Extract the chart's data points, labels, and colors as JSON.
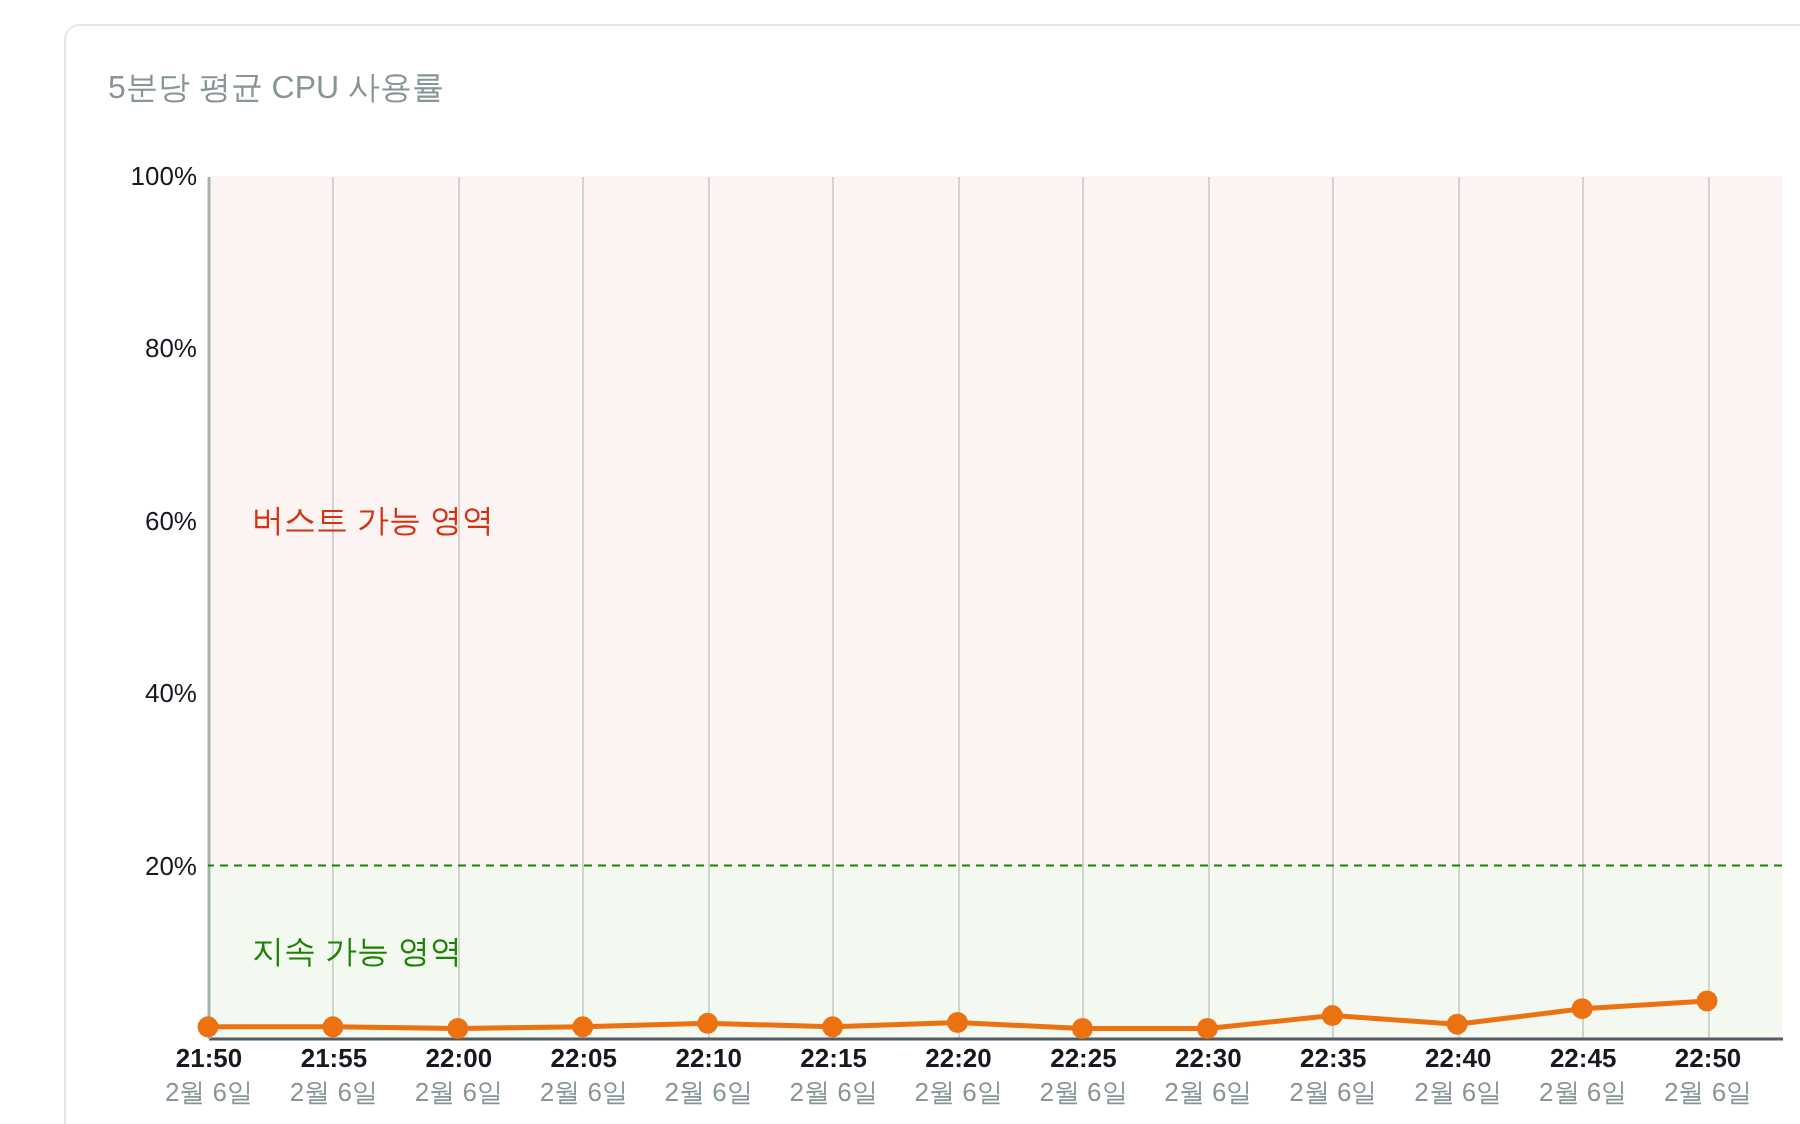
{
  "chart_data": {
    "type": "line",
    "title": "5분당 평균 CPU 사용률",
    "x": [
      "--02-06T21:50",
      "--02-06T21:55",
      "--02-06T22:00",
      "--02-06T22:05",
      "--02-06T22:10",
      "--02-06T22:15",
      "--02-06T22:20",
      "--02-06T22:25",
      "--02-06T22:30",
      "--02-06T22:35",
      "--02-06T22:40",
      "--02-06T22:45",
      "--02-06T22:50"
    ],
    "values": [
      1.3,
      1.3,
      1.1,
      1.3,
      1.7,
      1.3,
      1.8,
      1.1,
      1.1,
      2.6,
      1.6,
      3.4,
      4.3
    ],
    "color": "#ec7211",
    "xlim": [
      "--02-06T21:50",
      "--02-06T22:53"
    ],
    "xticks": [
      {
        "value": "--02-06T21:50",
        "label": "21:50\n2월 6일"
      },
      {
        "value": "--02-06T21:55",
        "label": "21:55\n2월 6일"
      },
      {
        "value": "--02-06T22:00",
        "label": "22:00\n2월 6일"
      },
      {
        "value": "--02-06T22:05",
        "label": "22:05\n2월 6일"
      },
      {
        "value": "--02-06T22:10",
        "label": "22:10\n2월 6일"
      },
      {
        "value": "--02-06T22:15",
        "label": "22:15\n2월 6일"
      },
      {
        "value": "--02-06T22:20",
        "label": "22:20\n2월 6일"
      },
      {
        "value": "--02-06T22:25",
        "label": "22:25\n2월 6일"
      },
      {
        "value": "--02-06T22:30",
        "label": "22:30\n2월 6일"
      },
      {
        "value": "--02-06T22:35",
        "label": "22:35\n2월 6일"
      },
      {
        "value": "--02-06T22:40",
        "label": "22:40\n2월 6일"
      },
      {
        "value": "--02-06T22:45",
        "label": "22:45\n2월 6일"
      },
      {
        "value": "--02-06T22:50",
        "label": "22:50\n2월 6일"
      }
    ],
    "ylim": [
      0,
      100
    ],
    "yticks": [
      {
        "value": 20,
        "label": "20%"
      },
      {
        "value": 40,
        "label": "40%"
      },
      {
        "value": 60,
        "label": "60%"
      },
      {
        "value": 80,
        "label": "80%"
      },
      {
        "value": 100,
        "label": "100%"
      }
    ],
    "grid": "x",
    "marker": "circle",
    "bands": [
      {
        "axis": "y",
        "from": 20,
        "to": 100,
        "label": "버스트 가능 영역",
        "color": "#d13212"
      },
      {
        "axis": "y",
        "from": 0,
        "to": 20,
        "label": "지속 가능 영역",
        "color": "#1d8102"
      }
    ],
    "ref_lines": [
      {
        "axis": "y",
        "value": 20,
        "color": "#1d8102",
        "line_style": "dashed"
      }
    ]
  }
}
